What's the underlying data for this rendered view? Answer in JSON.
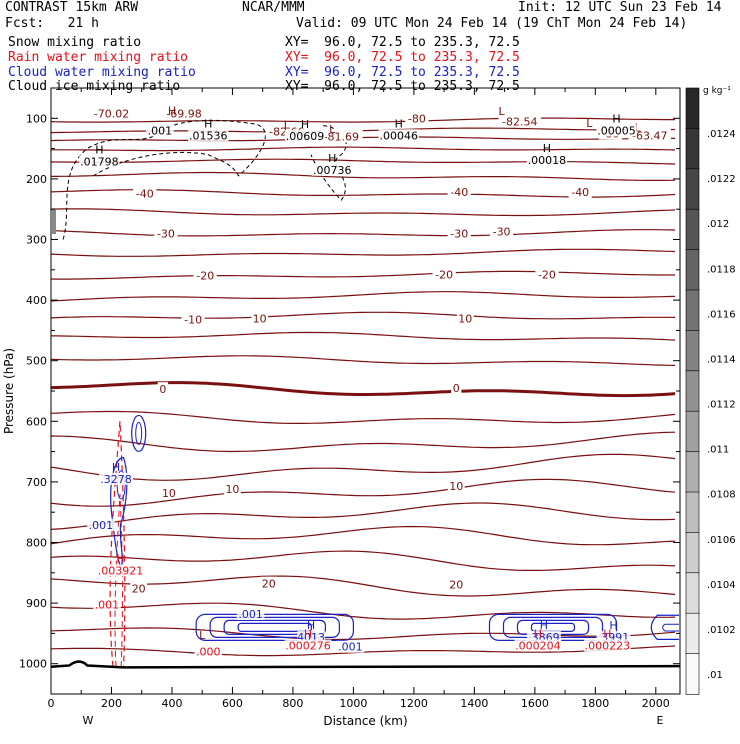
{
  "header": {
    "title_left": "CONTRAST 15km ARW",
    "title_center": "NCAR/MMM",
    "init": "Init: 12 UTC Sun 23 Feb 14",
    "fcst": "Fcst:   21 h",
    "valid": "Valid: 09 UTC Mon 24 Feb 14 (19 ChT Mon 24 Feb 14)"
  },
  "fields": [
    {
      "name": "Snow mixing ratio",
      "xy": "XY=  96.0, 72.5 to 235.3, 72.5",
      "color": "#000000"
    },
    {
      "name": "Rain water mixing ratio",
      "xy": "XY=  96.0, 72.5 to 235.3, 72.5",
      "color": "#e8101a"
    },
    {
      "name": "Cloud water mixing ratio",
      "xy": "XY=  96.0, 72.5 to 235.3, 72.5",
      "color": "#1a22c8"
    },
    {
      "name": "Cloud ice mixing ratio",
      "xy": "XY=  96.0, 72.5 to 235.3, 72.5",
      "color": "#000000"
    }
  ],
  "colors": {
    "temperature_contours": "#7a1010",
    "freezing_level": "#7a1010",
    "rain": "#e8101a",
    "cloud_water": "#1a22c8",
    "terrain": "#000000"
  },
  "colorbar": {
    "unit": "g kg⁻¹",
    "ticks": [
      ".0124",
      ".0122",
      ".012",
      ".0118",
      ".0116",
      ".0114",
      ".0112",
      ".011",
      ".0108",
      ".0106",
      ".0104",
      ".0102",
      ".01"
    ]
  },
  "chart_data": {
    "type": "contour",
    "xlabel": "Distance (km)",
    "ylabel": "Pressure (hPa)",
    "xlim": [
      0,
      2080
    ],
    "ylim": [
      1050,
      50
    ],
    "x_ticks": [
      0,
      200,
      400,
      600,
      800,
      1000,
      1200,
      1400,
      1600,
      1800,
      2000
    ],
    "y_ticks": [
      100,
      200,
      300,
      400,
      500,
      600,
      700,
      800,
      900,
      1000
    ],
    "x_end_labels": {
      "left": "W",
      "right": "E"
    },
    "temperature_contours": [
      {
        "label": "-80",
        "p": 103,
        "amp": 2
      },
      {
        "label": "-70",
        "p": 120,
        "amp": 2
      },
      {
        "label": "",
        "p": 135,
        "amp": 2
      },
      {
        "label": "",
        "p": 152,
        "amp": 2
      },
      {
        "label": "",
        "p": 172,
        "amp": 2
      },
      {
        "label": "",
        "p": 196,
        "amp": 3
      },
      {
        "label": "-40",
        "p": 224,
        "amp": 3
      },
      {
        "label": "",
        "p": 255,
        "amp": 3
      },
      {
        "label": "-30",
        "p": 289,
        "amp": 3
      },
      {
        "label": "",
        "p": 322,
        "amp": 3
      },
      {
        "label": "-20",
        "p": 359,
        "amp": 3
      },
      {
        "label": "",
        "p": 395,
        "amp": 4
      },
      {
        "label": "-10",
        "p": 429,
        "amp": 4
      },
      {
        "label": "",
        "p": 462,
        "amp": 4
      },
      {
        "label": "",
        "p": 500,
        "amp": 4
      },
      {
        "label": "0",
        "p": 547,
        "amp": 6
      },
      {
        "label": "",
        "p": 593,
        "amp": 6
      },
      {
        "label": "",
        "p": 634,
        "amp": 8
      },
      {
        "label": "",
        "p": 676,
        "amp": 10
      },
      {
        "label": "10",
        "p": 718,
        "amp": 10
      },
      {
        "label": "",
        "p": 757,
        "amp": 10
      },
      {
        "label": "",
        "p": 795,
        "amp": 10
      },
      {
        "label": "",
        "p": 834,
        "amp": 10
      },
      {
        "label": "20",
        "p": 873,
        "amp": 10
      },
      {
        "label": "",
        "p": 912,
        "amp": 8
      },
      {
        "label": "",
        "p": 948,
        "amp": 6
      },
      {
        "label": "",
        "p": 978,
        "amp": 4
      }
    ],
    "temperature_labels": [
      {
        "text": "-70.02",
        "x": 200,
        "p": 92
      },
      {
        "text": "-69.98",
        "x": 440,
        "p": 92
      },
      {
        "text": "-82.66",
        "x": 780,
        "p": 122
      },
      {
        "text": "-81.69",
        "x": 960,
        "p": 130
      },
      {
        "text": "-80",
        "x": 1210,
        "p": 100
      },
      {
        "text": "-82.54",
        "x": 1550,
        "p": 105
      },
      {
        "text": "-80",
        "x": 1850,
        "p": 125
      },
      {
        "text": "-63.47",
        "x": 1980,
        "p": 128
      },
      {
        "text": "-40",
        "x": 310,
        "p": 224
      },
      {
        "text": "-40",
        "x": 1350,
        "p": 222
      },
      {
        "text": "-40",
        "x": 1750,
        "p": 222
      },
      {
        "text": "-30",
        "x": 380,
        "p": 290
      },
      {
        "text": "-30",
        "x": 1350,
        "p": 290
      },
      {
        "text": "-30",
        "x": 1490,
        "p": 287
      },
      {
        "text": "-20",
        "x": 510,
        "p": 359
      },
      {
        "text": "-20",
        "x": 1300,
        "p": 358
      },
      {
        "text": "-20",
        "x": 1640,
        "p": 358
      },
      {
        "text": "-10",
        "x": 470,
        "p": 432
      },
      {
        "text": "10",
        "x": 690,
        "p": 430
      },
      {
        "text": "10",
        "x": 1370,
        "p": 430
      },
      {
        "text": "0",
        "x": 370,
        "p": 547
      },
      {
        "text": "0",
        "x": 1340,
        "p": 545
      },
      {
        "text": "10",
        "x": 390,
        "p": 718
      },
      {
        "text": "10",
        "x": 600,
        "p": 712
      },
      {
        "text": "10",
        "x": 1340,
        "p": 707
      },
      {
        "text": "20",
        "x": 290,
        "p": 876
      },
      {
        "text": "20",
        "x": 720,
        "p": 868
      },
      {
        "text": "20",
        "x": 1340,
        "p": 869
      }
    ],
    "extrema": [
      {
        "kind": "H",
        "x": 400,
        "p": 87,
        "color": "#7a1010"
      },
      {
        "kind": "L",
        "x": 780,
        "p": 110,
        "color": "#7a1010"
      },
      {
        "kind": "L",
        "x": 930,
        "p": 118,
        "color": "#7a1010"
      },
      {
        "kind": "L",
        "x": 1490,
        "p": 88,
        "color": "#7a1010"
      },
      {
        "kind": "L",
        "x": 1780,
        "p": 108,
        "color": "#7a1010"
      },
      {
        "kind": "L",
        "x": 1940,
        "p": 115,
        "color": "#7a1010"
      },
      {
        "kind": "L",
        "x": 500,
        "p": 953,
        "color": "#7a1010"
      }
    ],
    "snow_labels": [
      {
        "kind": "",
        "value": ".001",
        "x": 360,
        "p": 120
      },
      {
        "kind": "H",
        "value": ".01536",
        "x": 520,
        "p": 128
      },
      {
        "kind": "H",
        "value": ".01798",
        "x": 160,
        "p": 171
      },
      {
        "kind": "H",
        "value": ".00609",
        "x": 840,
        "p": 129
      },
      {
        "kind": "H",
        "value": ".00046",
        "x": 1150,
        "p": 128
      },
      {
        "kind": "H",
        "value": ".00736",
        "x": 930,
        "p": 185
      },
      {
        "kind": "H",
        "value": ".00018",
        "x": 1640,
        "p": 169
      },
      {
        "kind": "H",
        "value": ".00005",
        "x": 1870,
        "p": 120
      }
    ],
    "cloud_water_labels": [
      {
        "kind": "H",
        "value": ".3278",
        "x": 215,
        "p": 695
      },
      {
        "kind": "",
        "value": ".001",
        "x": 165,
        "p": 771
      },
      {
        "kind": "",
        "value": ".001",
        "x": 660,
        "p": 918
      },
      {
        "kind": "H",
        "value": "4013",
        "x": 860,
        "p": 956
      },
      {
        "kind": "",
        "value": ".001",
        "x": 990,
        "p": 972
      },
      {
        "kind": "H",
        "value": ".3869",
        "x": 1630,
        "p": 956
      },
      {
        "kind": "H",
        "value": ".3991",
        "x": 1860,
        "p": 956
      }
    ],
    "rain_labels": [
      {
        "kind": "H",
        "value": ".003921",
        "x": 230,
        "p": 846
      },
      {
        "kind": "",
        "value": ".001",
        "x": 185,
        "p": 902
      },
      {
        "kind": "",
        "value": ".000",
        "x": 520,
        "p": 980
      },
      {
        "kind": "H",
        "value": ".000276",
        "x": 850,
        "p": 970
      },
      {
        "kind": "H",
        "value": ".000204",
        "x": 1610,
        "p": 970
      },
      {
        "kind": "H",
        "value": ".000223",
        "x": 1840,
        "p": 970
      }
    ]
  }
}
